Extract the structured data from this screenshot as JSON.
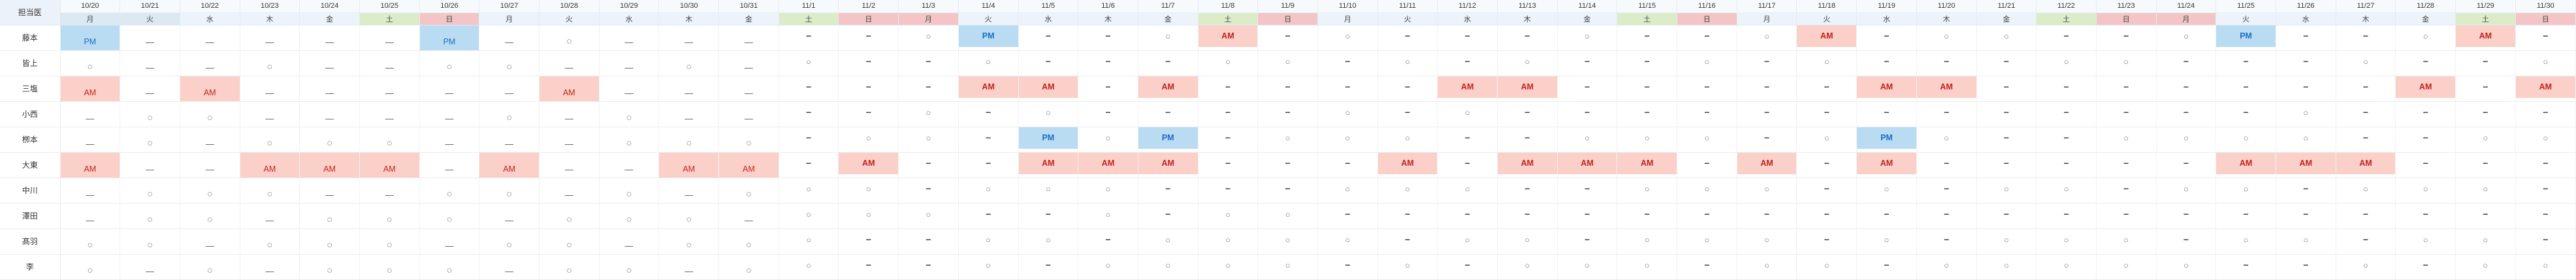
{
  "table": {
    "corner_label": "担当医",
    "first_editable_column_index": 12,
    "columns": [
      {
        "date": "10/20",
        "weekday": "月",
        "type": "normal",
        "highlight": true
      },
      {
        "date": "10/21",
        "weekday": "火",
        "type": "normal",
        "highlight": true
      },
      {
        "date": "10/22",
        "weekday": "水",
        "type": "normal",
        "highlight": false
      },
      {
        "date": "10/23",
        "weekday": "木",
        "type": "normal",
        "highlight": false
      },
      {
        "date": "10/24",
        "weekday": "金",
        "type": "normal",
        "highlight": false
      },
      {
        "date": "10/25",
        "weekday": "土",
        "type": "sat",
        "highlight": false
      },
      {
        "date": "10/26",
        "weekday": "日",
        "type": "sun",
        "highlight": false
      },
      {
        "date": "10/27",
        "weekday": "月",
        "type": "normal",
        "highlight": false
      },
      {
        "date": "10/28",
        "weekday": "火",
        "type": "normal",
        "highlight": false
      },
      {
        "date": "10/29",
        "weekday": "水",
        "type": "normal",
        "highlight": false
      },
      {
        "date": "10/30",
        "weekday": "木",
        "type": "normal",
        "highlight": false
      },
      {
        "date": "10/31",
        "weekday": "金",
        "type": "normal",
        "highlight": false
      },
      {
        "date": "11/1",
        "weekday": "土",
        "type": "sat",
        "highlight": false
      },
      {
        "date": "11/2",
        "weekday": "日",
        "type": "sun",
        "highlight": false
      },
      {
        "date": "11/3",
        "weekday": "月",
        "type": "holiday",
        "highlight": false
      },
      {
        "date": "11/4",
        "weekday": "火",
        "type": "normal",
        "highlight": false
      },
      {
        "date": "11/5",
        "weekday": "水",
        "type": "normal",
        "highlight": false
      },
      {
        "date": "11/6",
        "weekday": "木",
        "type": "normal",
        "highlight": false
      },
      {
        "date": "11/7",
        "weekday": "金",
        "type": "normal",
        "highlight": false
      },
      {
        "date": "11/8",
        "weekday": "土",
        "type": "sat",
        "highlight": false
      },
      {
        "date": "11/9",
        "weekday": "日",
        "type": "sun",
        "highlight": false
      },
      {
        "date": "11/10",
        "weekday": "月",
        "type": "normal",
        "highlight": false
      },
      {
        "date": "11/11",
        "weekday": "火",
        "type": "normal",
        "highlight": false
      },
      {
        "date": "11/12",
        "weekday": "水",
        "type": "normal",
        "highlight": false
      },
      {
        "date": "11/13",
        "weekday": "木",
        "type": "normal",
        "highlight": false
      },
      {
        "date": "11/14",
        "weekday": "金",
        "type": "normal",
        "highlight": false
      },
      {
        "date": "11/15",
        "weekday": "土",
        "type": "sat",
        "highlight": false
      },
      {
        "date": "11/16",
        "weekday": "日",
        "type": "sun",
        "highlight": false
      },
      {
        "date": "11/17",
        "weekday": "月",
        "type": "normal",
        "highlight": false
      },
      {
        "date": "11/18",
        "weekday": "火",
        "type": "normal",
        "highlight": false
      },
      {
        "date": "11/19",
        "weekday": "水",
        "type": "normal",
        "highlight": false
      },
      {
        "date": "11/20",
        "weekday": "木",
        "type": "normal",
        "highlight": false
      },
      {
        "date": "11/21",
        "weekday": "金",
        "type": "normal",
        "highlight": false
      },
      {
        "date": "11/22",
        "weekday": "土",
        "type": "sat",
        "highlight": false
      },
      {
        "date": "11/23",
        "weekday": "日",
        "type": "sun",
        "highlight": false
      },
      {
        "date": "11/24",
        "weekday": "月",
        "type": "holiday",
        "highlight": false
      },
      {
        "date": "11/25",
        "weekday": "火",
        "type": "normal",
        "highlight": false
      },
      {
        "date": "11/26",
        "weekday": "水",
        "type": "normal",
        "highlight": false
      },
      {
        "date": "11/27",
        "weekday": "木",
        "type": "normal",
        "highlight": false
      },
      {
        "date": "11/28",
        "weekday": "金",
        "type": "normal",
        "highlight": false
      },
      {
        "date": "11/29",
        "weekday": "土",
        "type": "sat",
        "highlight": false
      },
      {
        "date": "11/30",
        "weekday": "日",
        "type": "sun",
        "highlight": false
      }
    ],
    "rows": [
      {
        "name": "藤本",
        "cells": [
          "PM",
          "−",
          "−",
          "−",
          "−",
          "−",
          "PM",
          "−",
          "○",
          "−",
          "−",
          "−",
          "−",
          "−",
          "○",
          "PM",
          "−",
          "−",
          "○",
          "AM",
          "−",
          "○",
          "−",
          "−",
          "−",
          "○",
          "−",
          "−",
          "○",
          "AM",
          "−",
          "○",
          "○",
          "−",
          "−",
          "○",
          "PM",
          "−",
          "−",
          "○",
          "AM",
          "−"
        ]
      },
      {
        "name": "皆上",
        "cells": [
          "○",
          "−",
          "−",
          "○",
          "−",
          "−",
          "○",
          "○",
          "−",
          "−",
          "○",
          "−",
          "○",
          "−",
          "−",
          "○",
          "−",
          "−",
          "−",
          "○",
          "○",
          "−",
          "○",
          "−",
          "○",
          "−",
          "−",
          "○",
          "−",
          "○",
          "−",
          "−",
          "−",
          "○",
          "○",
          "−",
          "−",
          "−",
          "○",
          "−",
          "−",
          "○"
        ]
      },
      {
        "name": "三塩",
        "cells": [
          "AM",
          "−",
          "AM",
          "−",
          "−",
          "−",
          "−",
          "−",
          "AM",
          "−",
          "−",
          "−",
          "−",
          "−",
          "−",
          "AM",
          "AM",
          "−",
          "AM",
          "−",
          "−",
          "−",
          "−",
          "AM",
          "AM",
          "−",
          "−",
          "−",
          "−",
          "−",
          "AM",
          "AM",
          "−",
          "−",
          "−",
          "−",
          "−",
          "−",
          "−",
          "AM",
          "−",
          "AM"
        ]
      },
      {
        "name": "小西",
        "cells": [
          "−",
          "○",
          "○",
          "−",
          "−",
          "−",
          "−",
          "○",
          "−",
          "○",
          "−",
          "−",
          "−",
          "−",
          "○",
          "−",
          "○",
          "−",
          "−",
          "−",
          "−",
          "○",
          "−",
          "○",
          "−",
          "−",
          "−",
          "−",
          "−",
          "−",
          "−",
          "−",
          "−",
          "−",
          "−",
          "−",
          "−",
          "○",
          "−",
          "−",
          "−",
          "−"
        ]
      },
      {
        "name": "栁本",
        "cells": [
          "−",
          "○",
          "−",
          "○",
          "○",
          "○",
          "−",
          "−",
          "−",
          "○",
          "○",
          "○",
          "−",
          "○",
          "○",
          "−",
          "PM",
          "○",
          "PM",
          "−",
          "○",
          "○",
          "○",
          "−",
          "−",
          "○",
          "○",
          "○",
          "−",
          "○",
          "PM",
          "○",
          "−",
          "−",
          "○",
          "○",
          "○",
          "○",
          "−",
          "−",
          "○",
          "○"
        ]
      },
      {
        "name": "大東",
        "cells": [
          "AM",
          "−",
          "−",
          "AM",
          "AM",
          "AM",
          "−",
          "AM",
          "−",
          "−",
          "AM",
          "AM",
          "−",
          "AM",
          "−",
          "−",
          "AM",
          "AM",
          "AM",
          "−",
          "−",
          "−",
          "AM",
          "−",
          "AM",
          "AM",
          "AM",
          "−",
          "AM",
          "−",
          "AM",
          "−",
          "−",
          "−",
          "−",
          "−",
          "AM",
          "AM",
          "AM",
          "−",
          "−",
          "−"
        ]
      },
      {
        "name": "中川",
        "cells": [
          "−",
          "○",
          "○",
          "○",
          "−",
          "−",
          "○",
          "○",
          "−",
          "○",
          "−",
          "○",
          "○",
          "○",
          "−",
          "○",
          "○",
          "○",
          "−",
          "−",
          "−",
          "○",
          "○",
          "○",
          "−",
          "−",
          "○",
          "○",
          "○",
          "−",
          "○",
          "−",
          "○",
          "○",
          "−",
          "○",
          "○",
          "−",
          "○",
          "○",
          "○",
          "−"
        ]
      },
      {
        "name": "澤田",
        "cells": [
          "−",
          "○",
          "○",
          "−",
          "○",
          "○",
          "○",
          "−",
          "○",
          "○",
          "○",
          "−",
          "○",
          "○",
          "○",
          "−",
          "−",
          "○",
          "−",
          "○",
          "○",
          "−",
          "−",
          "−",
          "−",
          "−",
          "−",
          "−",
          "−",
          "−",
          "−",
          "−",
          "−",
          "−",
          "−",
          "−",
          "−",
          "−",
          "−",
          "−",
          "−",
          "−"
        ]
      },
      {
        "name": "髙羽",
        "cells": [
          "○",
          "○",
          "−",
          "○",
          "○",
          "○",
          "−",
          "○",
          "○",
          "−",
          "○",
          "○",
          "○",
          "−",
          "−",
          "○",
          "○",
          "−",
          "○",
          "○",
          "○",
          "○",
          "−",
          "○",
          "○",
          "−",
          "○",
          "○",
          "○",
          "−",
          "○",
          "−",
          "○",
          "○",
          "○",
          "−",
          "○",
          "○",
          "−",
          "○",
          "○",
          "−"
        ]
      },
      {
        "name": "李",
        "cells": [
          "○",
          "−",
          "○",
          "−",
          "○",
          "○",
          "○",
          "−",
          "○",
          "○",
          "−",
          "○",
          "○",
          "−",
          "−",
          "○",
          "−",
          "○",
          "○",
          "○",
          "○",
          "−",
          "○",
          "−",
          "○",
          "○",
          "○",
          "−",
          "○",
          "○",
          "−",
          "○",
          "○",
          "○",
          "○",
          "○",
          "−",
          "−",
          "○",
          "−",
          "○",
          "○"
        ]
      }
    ],
    "special_cells": [
      {
        "row_index": 2,
        "col_index": 13,
        "style": "blue-dash"
      }
    ],
    "colors": {
      "am_bg": "#fbd0c8",
      "am_text": "#c3221f",
      "pm_bg": "#badcf2",
      "pm_text": "#1b6cc6",
      "saturday_bg": "#dcecc9",
      "sunday_holiday_bg": "#f4c5c6",
      "weekday_header_bg": "#edf3fa",
      "weekday_highlight_bg": "#dce8f2",
      "date_header_bg": "#f7fafd",
      "corner_bg": "#ecf2f9",
      "blue_dash_text": "#79a3ea"
    }
  }
}
